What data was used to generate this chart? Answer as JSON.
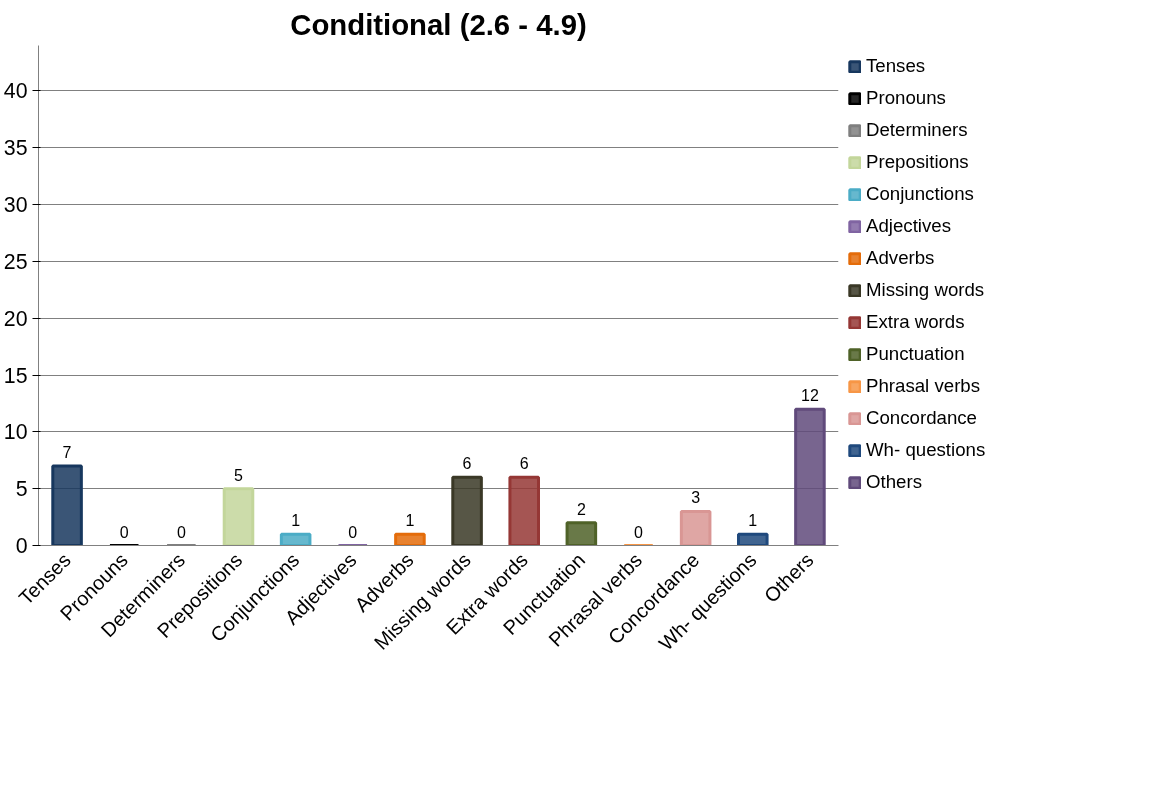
{
  "chart_data": {
    "type": "bar",
    "title": "Conditional (2.6 - 4.9)",
    "categories": [
      "Tenses",
      "Pronouns",
      "Determiners",
      "Prepositions",
      "Conjunctions",
      "Adjectives",
      "Adverbs",
      "Missing words",
      "Extra words",
      "Punctuation",
      "Phrasal verbs",
      "Concordance",
      "Wh- questions",
      "Others"
    ],
    "series": [
      {
        "name": "Tenses",
        "color": "#17375e",
        "values": [
          7,
          null,
          null,
          null,
          null,
          null,
          null,
          null,
          null,
          null,
          null,
          null,
          null,
          null
        ]
      },
      {
        "name": "Pronouns",
        "color": "#000000",
        "values": [
          null,
          0,
          null,
          null,
          null,
          null,
          null,
          null,
          null,
          null,
          null,
          null,
          null,
          null
        ]
      },
      {
        "name": "Determiners",
        "color": "#7f7f7f",
        "values": [
          null,
          null,
          0,
          null,
          null,
          null,
          null,
          null,
          null,
          null,
          null,
          null,
          null,
          null
        ]
      },
      {
        "name": "Prepositions",
        "color": "#c3d69b",
        "values": [
          null,
          null,
          null,
          5,
          null,
          null,
          null,
          null,
          null,
          null,
          null,
          null,
          null,
          null
        ]
      },
      {
        "name": "Conjunctions",
        "color": "#4bacc6",
        "values": [
          null,
          null,
          null,
          null,
          1,
          null,
          null,
          null,
          null,
          null,
          null,
          null,
          null,
          null
        ]
      },
      {
        "name": "Adjectives",
        "color": "#8064a2",
        "values": [
          null,
          null,
          null,
          null,
          null,
          0,
          null,
          null,
          null,
          null,
          null,
          null,
          null,
          null
        ]
      },
      {
        "name": "Adverbs",
        "color": "#e46c0a",
        "values": [
          null,
          null,
          null,
          null,
          null,
          null,
          1,
          null,
          null,
          null,
          null,
          null,
          null,
          null
        ]
      },
      {
        "name": "Missing words",
        "color": "#3a3826",
        "values": [
          null,
          null,
          null,
          null,
          null,
          null,
          null,
          6,
          null,
          null,
          null,
          null,
          null,
          null
        ]
      },
      {
        "name": "Extra words",
        "color": "#953735",
        "values": [
          null,
          null,
          null,
          null,
          null,
          null,
          null,
          null,
          6,
          null,
          null,
          null,
          null,
          null
        ]
      },
      {
        "name": "Punctuation",
        "color": "#4f6228",
        "values": [
          null,
          null,
          null,
          null,
          null,
          null,
          null,
          null,
          null,
          2,
          null,
          null,
          null,
          null
        ]
      },
      {
        "name": "Phrasal verbs",
        "color": "#f79646",
        "values": [
          null,
          null,
          null,
          null,
          null,
          null,
          null,
          null,
          null,
          null,
          0,
          null,
          null,
          null
        ]
      },
      {
        "name": "Concordance",
        "color": "#d99694",
        "values": [
          null,
          null,
          null,
          null,
          null,
          null,
          null,
          null,
          null,
          null,
          null,
          3,
          null,
          null
        ]
      },
      {
        "name": "Wh- questions",
        "color": "#1f497d",
        "values": [
          null,
          null,
          null,
          null,
          null,
          null,
          null,
          null,
          null,
          null,
          null,
          null,
          1,
          null
        ]
      },
      {
        "name": "Others",
        "color": "#604a7b",
        "values": [
          null,
          null,
          null,
          null,
          null,
          null,
          null,
          null,
          null,
          null,
          null,
          null,
          null,
          12
        ]
      }
    ],
    "ylim": [
      0,
      44
    ],
    "yticks": [
      0,
      5,
      10,
      15,
      20,
      25,
      30,
      35,
      40
    ],
    "grid": "y",
    "legend": "right",
    "data_labels": true
  }
}
